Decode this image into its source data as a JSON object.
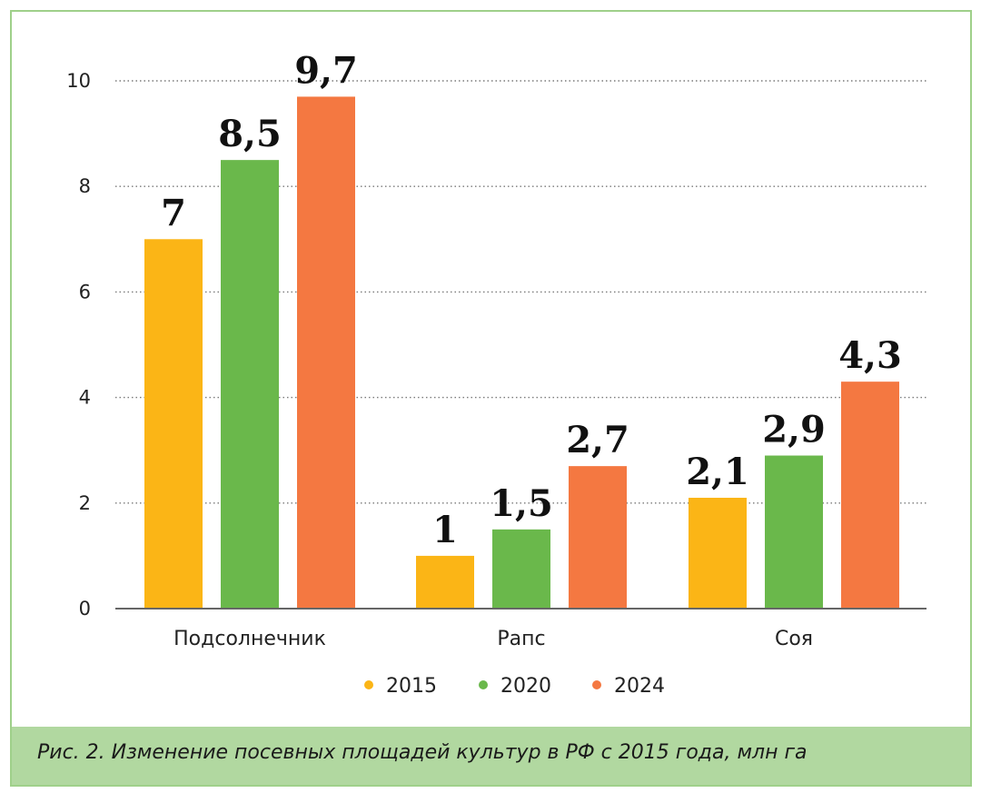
{
  "chart_data": {
    "type": "bar",
    "categories": [
      "Подсолнечник",
      "Рапс",
      "Соя"
    ],
    "series": [
      {
        "name": "2015",
        "color": "#fbb516",
        "values": [
          7,
          1,
          2.1
        ],
        "labels": [
          "7",
          "1",
          "2,1"
        ]
      },
      {
        "name": "2020",
        "color": "#6ab84b",
        "values": [
          8.5,
          1.5,
          2.9
        ],
        "labels": [
          "8,5",
          "1,5",
          "2,9"
        ]
      },
      {
        "name": "2024",
        "color": "#f47841",
        "values": [
          9.7,
          2.7,
          4.3
        ],
        "labels": [
          "9,7",
          "2,7",
          "4,3"
        ]
      }
    ],
    "y_ticks": [
      "0",
      "2",
      "4",
      "6",
      "8",
      "10"
    ],
    "ylim": [
      0,
      10
    ],
    "grid": true,
    "legend_position": "bottom-center",
    "xlabel": "",
    "ylabel": ""
  },
  "caption": "Рис. 2. Изменение посевных площадей культур в РФ с 2015 года, млн га"
}
